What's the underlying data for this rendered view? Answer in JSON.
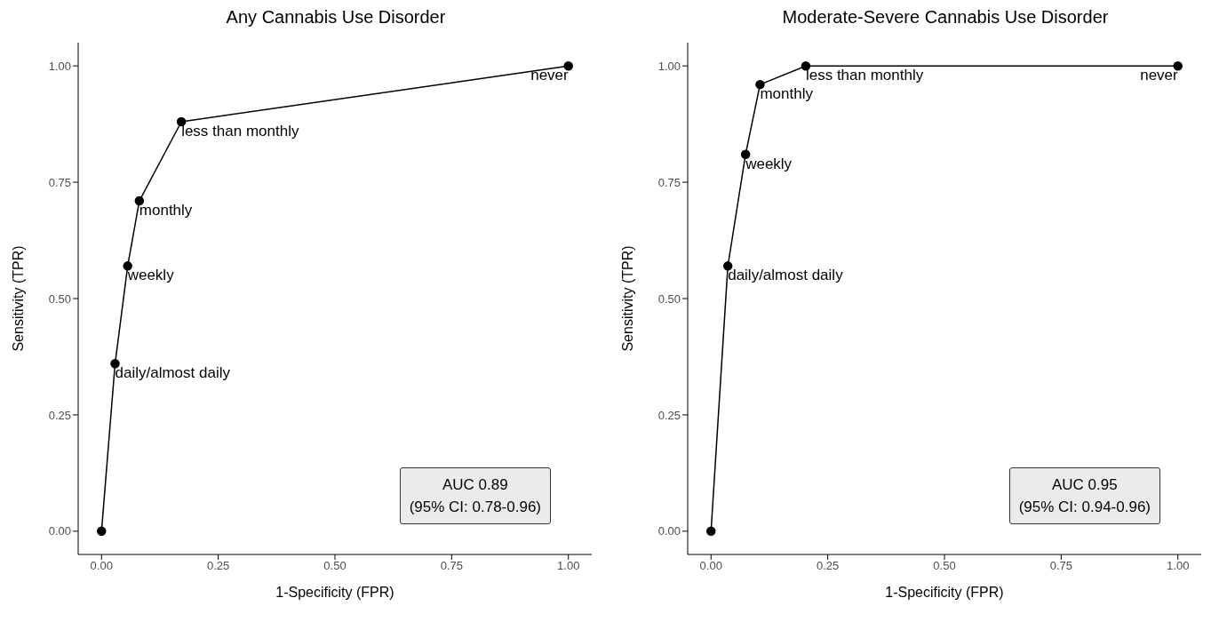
{
  "chart_data": [
    {
      "type": "line",
      "title": "Any Cannabis Use Disorder",
      "xlabel": "1-Specificity (FPR)",
      "ylabel": "Sensitivity (TPR)",
      "x": [
        0,
        0.029,
        0.056,
        0.081,
        0.171,
        1
      ],
      "values": [
        0,
        0.36,
        0.57,
        0.71,
        0.88,
        1
      ],
      "color": "#000000",
      "marker": "circle",
      "grid": false,
      "xlim": [
        -0.05,
        1.05
      ],
      "ylim": [
        -0.05,
        1.05
      ],
      "xticks": [
        {
          "value": 0,
          "label": "0.00"
        },
        {
          "value": 0.25,
          "label": "0.25"
        },
        {
          "value": 0.5,
          "label": "0.50"
        },
        {
          "value": 0.75,
          "label": "0.75"
        },
        {
          "value": 1,
          "label": "1.00"
        }
      ],
      "yticks": [
        {
          "value": 0,
          "label": "0.00"
        },
        {
          "value": 0.25,
          "label": "0.25"
        },
        {
          "value": 0.5,
          "label": "0.50"
        },
        {
          "value": 0.75,
          "label": "0.75"
        },
        {
          "value": 1,
          "label": "1.00"
        }
      ],
      "annotations": [
        {
          "text": "daily/almost daily",
          "x": 0.029,
          "y": 0.36
        },
        {
          "text": "weekly",
          "x": 0.056,
          "y": 0.57
        },
        {
          "text": "monthly",
          "x": 0.081,
          "y": 0.71
        },
        {
          "text": "less than monthly",
          "x": 0.171,
          "y": 0.88
        },
        {
          "text": "never",
          "x": 1,
          "y": 1
        },
        "AUC 0.89\n(95% CI: 0.78-0.96)"
      ]
    },
    {
      "type": "line",
      "title": "Moderate-Severe Cannabis Use Disorder",
      "xlabel": "1-Specificity (FPR)",
      "ylabel": "Sensitivity (TPR)",
      "x": [
        0,
        0.036,
        0.074,
        0.105,
        0.203,
        1
      ],
      "values": [
        0,
        0.57,
        0.81,
        0.96,
        1,
        1
      ],
      "color": "#000000",
      "marker": "circle",
      "grid": false,
      "xlim": [
        -0.05,
        1.05
      ],
      "ylim": [
        -0.05,
        1.05
      ],
      "xticks": [
        {
          "value": 0,
          "label": "0.00"
        },
        {
          "value": 0.25,
          "label": "0.25"
        },
        {
          "value": 0.5,
          "label": "0.50"
        },
        {
          "value": 0.75,
          "label": "0.75"
        },
        {
          "value": 1,
          "label": "1.00"
        }
      ],
      "yticks": [
        {
          "value": 0,
          "label": "0.00"
        },
        {
          "value": 0.25,
          "label": "0.25"
        },
        {
          "value": 0.5,
          "label": "0.50"
        },
        {
          "value": 0.75,
          "label": "0.75"
        },
        {
          "value": 1,
          "label": "1.00"
        }
      ],
      "annotations": [
        {
          "text": "daily/almost daily",
          "x": 0.036,
          "y": 0.57
        },
        {
          "text": "weekly",
          "x": 0.074,
          "y": 0.81
        },
        {
          "text": "monthly",
          "x": 0.105,
          "y": 0.96
        },
        {
          "text": "less than monthly",
          "x": 0.203,
          "y": 1
        },
        {
          "text": "never",
          "x": 1,
          "y": 1
        },
        "AUC 0.95\n(95% CI: 0.94-0.96)"
      ]
    }
  ]
}
